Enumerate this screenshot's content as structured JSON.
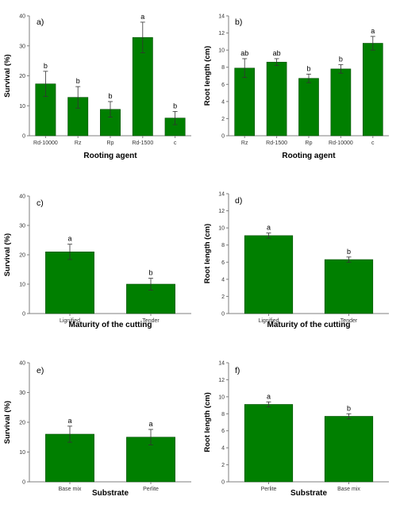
{
  "colors": {
    "bar": "#007f00",
    "bar_edge": "#004d00",
    "axis": "#7f7f7f",
    "error": "#333333"
  },
  "chart_data": [
    {
      "type": "bar",
      "panel": "a)",
      "ylabel": "Survival (%)",
      "xlabel": "Rooting agent",
      "ylim": [
        0,
        40
      ],
      "yticks": [
        "0",
        "10",
        "20",
        "30",
        "40"
      ],
      "categories": [
        "Rd-10000",
        "Rz",
        "Rp",
        "Rd-1500",
        "c"
      ],
      "values": [
        17.3,
        12.8,
        8.8,
        32.8,
        5.9
      ],
      "errors": [
        4.2,
        3.6,
        2.6,
        5.1,
        2.2
      ],
      "significance": [
        "b",
        "b",
        "b",
        "a",
        "b"
      ]
    },
    {
      "type": "bar",
      "panel": "b)",
      "ylabel": "Root length (cm)",
      "xlabel": "Rooting agent",
      "ylim": [
        0,
        14
      ],
      "yticks": [
        "0",
        "2",
        "4",
        "6",
        "8",
        "10",
        "12",
        "14"
      ],
      "categories": [
        "Rz",
        "Rd-1500",
        "Rp",
        "Rd-10000",
        "c"
      ],
      "values": [
        7.9,
        8.6,
        6.7,
        7.8,
        10.8
      ],
      "errors": [
        1.1,
        0.4,
        0.5,
        0.5,
        0.8
      ],
      "significance": [
        "ab",
        "ab",
        "b",
        "b",
        "a"
      ]
    },
    {
      "type": "bar",
      "panel": "c)",
      "ylabel": "Survival (%)",
      "xlabel": "Maturity of the cutting",
      "ylim": [
        0,
        40
      ],
      "yticks": [
        "0",
        "10",
        "20",
        "30",
        "40"
      ],
      "categories": [
        "Lignified",
        "Tender"
      ],
      "values": [
        21.0,
        10.0
      ],
      "errors": [
        2.6,
        2.0
      ],
      "significance": [
        "a",
        "b"
      ]
    },
    {
      "type": "bar",
      "panel": "d)",
      "ylabel": "Root length (cm)",
      "xlabel": "Maturity of the cutting",
      "ylim": [
        0,
        14
      ],
      "yticks": [
        "0",
        "2",
        "4",
        "6",
        "8",
        "10",
        "12",
        "14"
      ],
      "categories": [
        "Lignified",
        "Tender"
      ],
      "values": [
        9.1,
        6.3
      ],
      "errors": [
        0.3,
        0.3
      ],
      "significance": [
        "a",
        "b"
      ]
    },
    {
      "type": "bar",
      "panel": "e)",
      "ylabel": "Survival (%)",
      "xlabel": "Substrate",
      "ylim": [
        0,
        40
      ],
      "yticks": [
        "0",
        "10",
        "20",
        "30",
        "40"
      ],
      "categories": [
        "Base mix",
        "Perlite"
      ],
      "values": [
        16.0,
        15.0
      ],
      "errors": [
        2.7,
        2.6
      ],
      "significance": [
        "a",
        "a"
      ]
    },
    {
      "type": "bar",
      "panel": "f)",
      "ylabel": "Root length (cm)",
      "xlabel": "Substrate",
      "ylim": [
        0,
        14
      ],
      "yticks": [
        "0",
        "2",
        "4",
        "6",
        "8",
        "10",
        "12",
        "14"
      ],
      "categories": [
        "Perlite",
        "Base mix"
      ],
      "values": [
        9.1,
        7.7
      ],
      "errors": [
        0.3,
        0.3
      ],
      "significance": [
        "a",
        "b"
      ]
    }
  ]
}
